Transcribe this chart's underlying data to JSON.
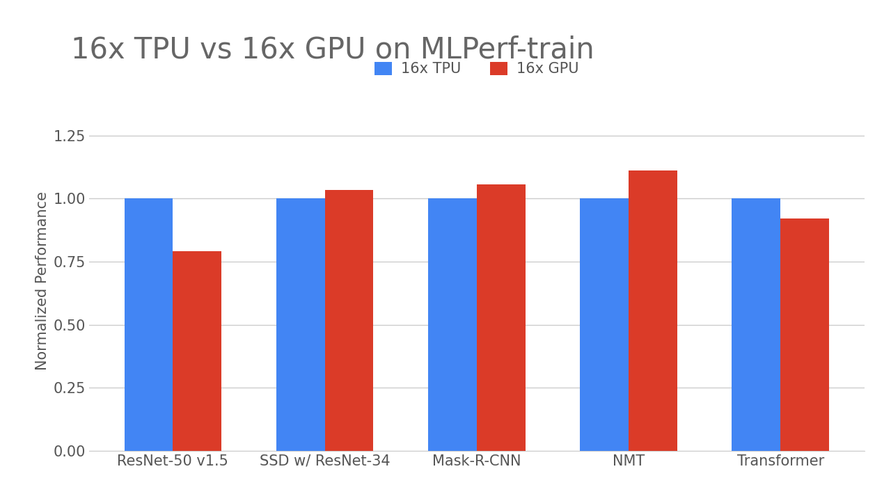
{
  "title": "16x TPU vs 16x GPU on MLPerf-train",
  "ylabel": "Normalized Performance",
  "categories": [
    "ResNet-50 v1.5",
    "SSD w/ ResNet-34",
    "Mask-R-CNN",
    "NMT",
    "Transformer"
  ],
  "tpu_values": [
    1.0,
    1.0,
    1.0,
    1.0,
    1.0
  ],
  "gpu_values": [
    0.79,
    1.035,
    1.055,
    1.11,
    0.92
  ],
  "tpu_color": "#4285F4",
  "gpu_color": "#DB3B28",
  "legend_labels": [
    "16x TPU",
    "16x GPU"
  ],
  "ylim": [
    0,
    1.35
  ],
  "yticks": [
    0.0,
    0.25,
    0.5,
    0.75,
    1.0,
    1.25
  ],
  "background_color": "#ffffff",
  "title_color": "#666666",
  "tick_color": "#555555",
  "grid_color": "#cccccc",
  "title_fontsize": 30,
  "label_fontsize": 15,
  "tick_fontsize": 15,
  "legend_fontsize": 15,
  "bar_width": 0.32
}
